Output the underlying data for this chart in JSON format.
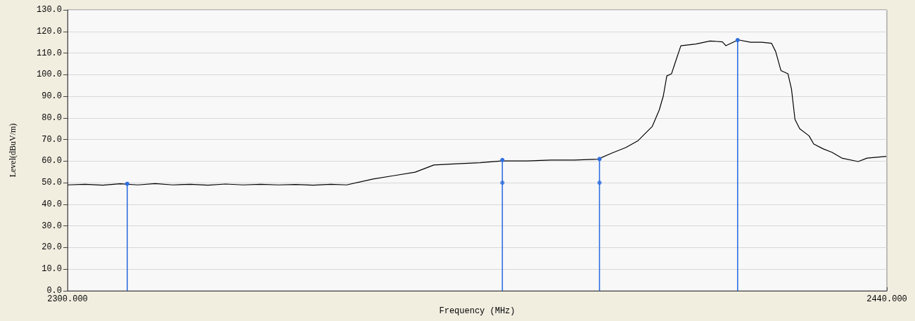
{
  "chart_data": {
    "type": "line",
    "xlabel": "Frequency (MHz)",
    "ylabel": "Level(dBuV/m)",
    "xlim": [
      2300,
      2440
    ],
    "xticks": [
      {
        "value": 2300,
        "label": "2300.000"
      },
      {
        "value": 2440,
        "label": "2440.000"
      }
    ],
    "ylim": [
      0,
      130
    ],
    "yticks": [
      {
        "value": 0,
        "label": "0.0"
      },
      {
        "value": 10,
        "label": "10.0"
      },
      {
        "value": 20,
        "label": "20.0"
      },
      {
        "value": 30,
        "label": "30.0"
      },
      {
        "value": 40,
        "label": "40.0"
      },
      {
        "value": 50,
        "label": "50.0"
      },
      {
        "value": 60,
        "label": "60.0"
      },
      {
        "value": 70,
        "label": "70.0"
      },
      {
        "value": 80,
        "label": "80.0"
      },
      {
        "value": 90,
        "label": "90.0"
      },
      {
        "value": 100,
        "label": "100.0"
      },
      {
        "value": 110,
        "label": "110.0"
      },
      {
        "value": 120,
        "label": "120.0"
      },
      {
        "value": 130,
        "label": "130.0"
      }
    ],
    "grid": "y",
    "series": [
      {
        "color": "#000000",
        "marker": "none",
        "x": [
          2300,
          2303,
          2306,
          2309,
          2312,
          2315,
          2318,
          2321,
          2324,
          2327,
          2330,
          2333,
          2336,
          2339,
          2342,
          2345,
          2347.7,
          2352.2,
          2355.8,
          2359.4,
          2362.6,
          2366.6,
          2370.5,
          2374.2,
          2378.6,
          2382.6,
          2386.6,
          2390.6,
          2393.0,
          2395.4,
          2397.5,
          2399.9,
          2401.1,
          2401.8,
          2402.4,
          2403.2,
          2403.8,
          2404.8,
          2407.4,
          2409.8,
          2411.9,
          2412.5,
          2414.6,
          2416.7,
          2418.6,
          2420.3,
          2421.0,
          2421.9,
          2423.1,
          2423.7,
          2424.3,
          2425.1,
          2426.7,
          2427.5,
          2429.1,
          2430.6,
          2432.3,
          2435.1,
          2436.6,
          2439.9
        ],
        "values": [
          49.0,
          49.3,
          48.9,
          49.5,
          49.0,
          49.6,
          49.0,
          49.3,
          48.9,
          49.4,
          49.0,
          49.3,
          49.0,
          49.2,
          48.9,
          49.3,
          49.0,
          51.7,
          53.3,
          54.9,
          58.2,
          58.8,
          59.3,
          60.1,
          60.1,
          60.5,
          60.5,
          60.9,
          63.7,
          66.3,
          69.5,
          76.0,
          83.6,
          90.1,
          99.4,
          100.4,
          105.3,
          113.4,
          114.2,
          115.6,
          115.2,
          113.4,
          116.1,
          115.0,
          115.0,
          114.5,
          110.7,
          101.9,
          100.4,
          93.4,
          79.3,
          75.0,
          71.7,
          67.9,
          65.7,
          64.1,
          61.4,
          59.8,
          61.4,
          62.2
        ]
      },
      {
        "type": "lollipop",
        "color": "#2f6ee0",
        "x": [
          2310.2,
          2374.3,
          2390.9,
          2414.5
        ],
        "values": [
          49.5,
          60.5,
          61.0,
          116.0
        ]
      },
      {
        "type": "scatter",
        "color": "#2f6ee0",
        "marker": "circle",
        "x": [
          2374.3,
          2390.9
        ],
        "values": [
          50.0,
          50.0
        ]
      }
    ]
  }
}
